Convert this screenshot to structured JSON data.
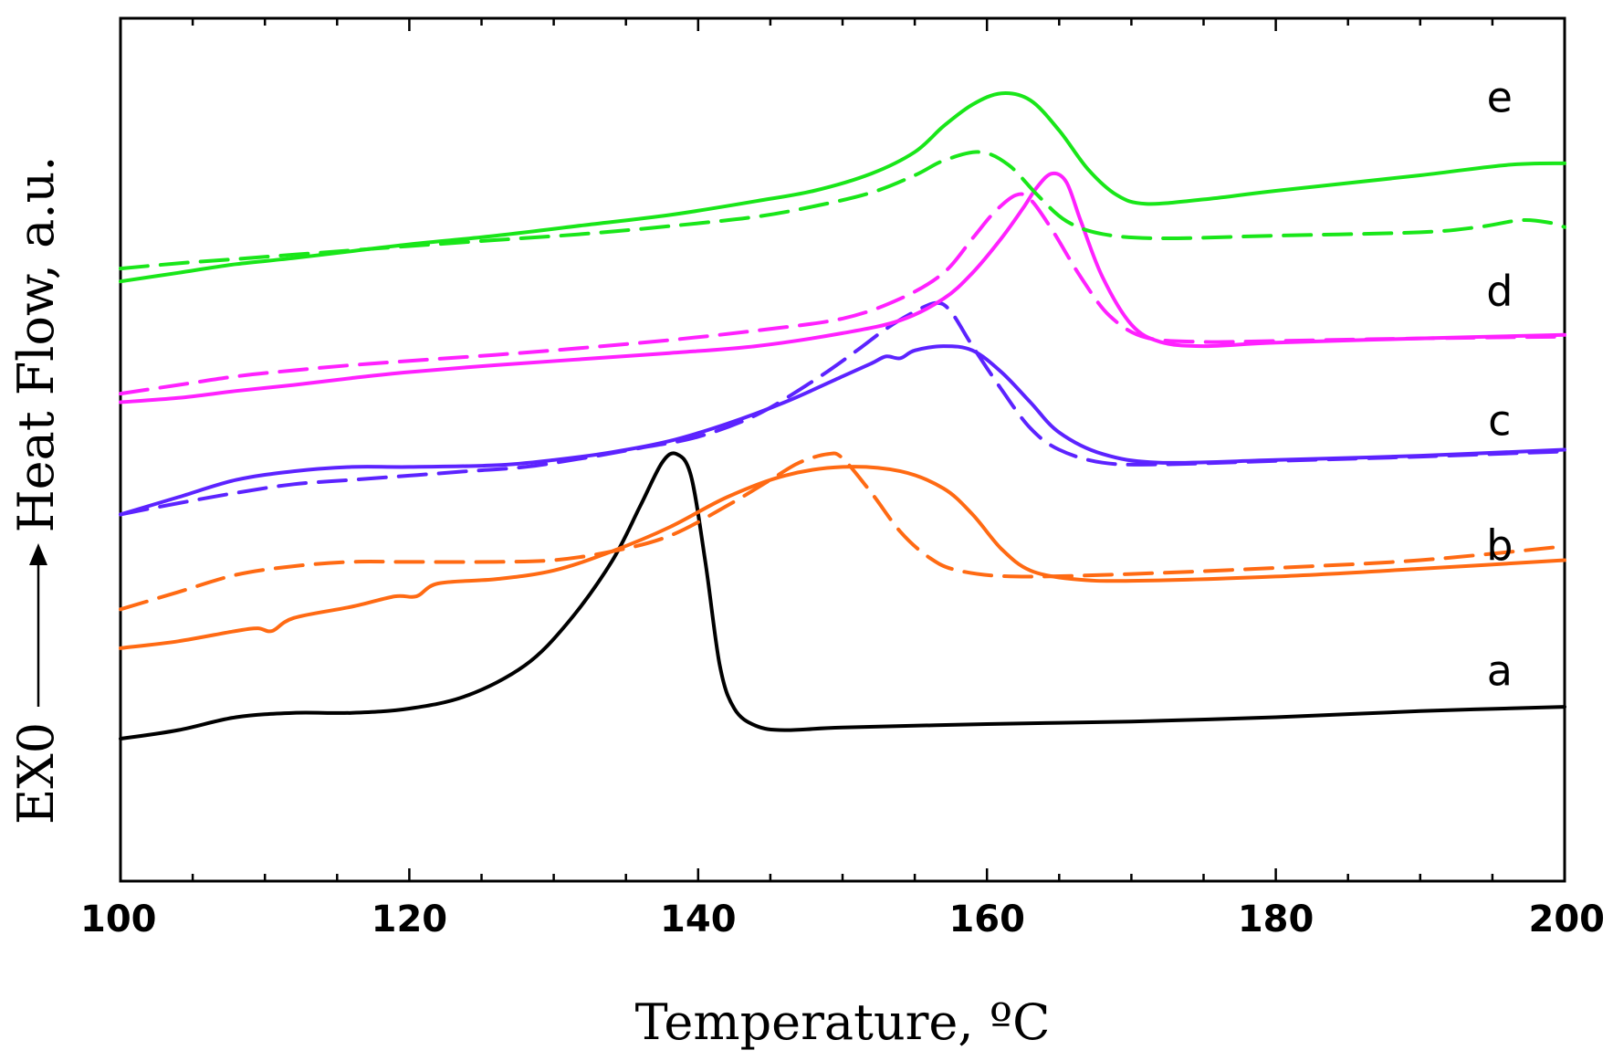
{
  "chart_data": {
    "type": "line",
    "title": "",
    "xlabel": "Temperature, ºC",
    "ylabel": "Heat Flow, a.u.",
    "ylabel_prefix": "EX0",
    "xlim": [
      100,
      200
    ],
    "ylim": [
      0,
      100
    ],
    "x_ticks": [
      100,
      120,
      140,
      160,
      180,
      200
    ],
    "x_tick_labels": [
      "100",
      "120",
      "140",
      "160",
      "180",
      "200"
    ],
    "y_ticks_shown": false,
    "grid": false,
    "curve_labels": [
      {
        "text": "e",
        "x": 195.5,
        "y": 90.5
      },
      {
        "text": "d",
        "x": 195.5,
        "y": 68.0
      },
      {
        "text": "c",
        "x": 195.5,
        "y": 53.0
      },
      {
        "text": "b",
        "x": 195.5,
        "y": 38.5
      },
      {
        "text": "a",
        "x": 195.5,
        "y": 24.0
      }
    ],
    "series": [
      {
        "name": "a",
        "color": "#000000",
        "dashed": false,
        "points": [
          [
            100,
            16.5
          ],
          [
            104,
            17.5
          ],
          [
            108,
            19.0
          ],
          [
            112,
            19.5
          ],
          [
            116,
            19.5
          ],
          [
            120,
            20.0
          ],
          [
            124,
            21.5
          ],
          [
            128,
            25.0
          ],
          [
            131,
            30.0
          ],
          [
            134,
            37.0
          ],
          [
            136,
            43.5
          ],
          [
            137.5,
            48.5
          ],
          [
            138.5,
            49.5
          ],
          [
            139.5,
            47.0
          ],
          [
            140.5,
            37.0
          ],
          [
            141.5,
            25.0
          ],
          [
            142.5,
            20.0
          ],
          [
            144,
            18.0
          ],
          [
            146,
            17.5
          ],
          [
            150,
            17.8
          ],
          [
            160,
            18.2
          ],
          [
            170,
            18.5
          ],
          [
            180,
            19.0
          ],
          [
            190,
            19.7
          ],
          [
            200,
            20.2
          ]
        ]
      },
      {
        "name": "b",
        "color": "#ff6a13",
        "dashed": false,
        "points": [
          [
            100,
            27.0
          ],
          [
            104,
            27.8
          ],
          [
            108,
            29.0
          ],
          [
            109.5,
            29.3
          ],
          [
            110.5,
            29.0
          ],
          [
            112,
            30.5
          ],
          [
            116,
            31.8
          ],
          [
            119,
            33.0
          ],
          [
            120.5,
            33.0
          ],
          [
            122,
            34.5
          ],
          [
            126,
            35.0
          ],
          [
            130,
            36.0
          ],
          [
            134,
            38.2
          ],
          [
            138,
            41.0
          ],
          [
            142,
            44.5
          ],
          [
            146,
            47.0
          ],
          [
            150,
            48.0
          ],
          [
            154,
            47.5
          ],
          [
            157,
            45.5
          ],
          [
            159,
            42.5
          ],
          [
            161,
            38.5
          ],
          [
            163,
            36.0
          ],
          [
            166,
            35.0
          ],
          [
            170,
            34.8
          ],
          [
            180,
            35.3
          ],
          [
            190,
            36.2
          ],
          [
            200,
            37.2
          ]
        ]
      },
      {
        "name": "b-dashed",
        "color": "#ff6a13",
        "dashed": true,
        "points": [
          [
            100,
            31.5
          ],
          [
            104,
            33.5
          ],
          [
            108,
            35.5
          ],
          [
            112,
            36.5
          ],
          [
            116,
            37.0
          ],
          [
            120,
            37.0
          ],
          [
            126,
            37.0
          ],
          [
            130,
            37.2
          ],
          [
            134,
            38.2
          ],
          [
            138,
            40.0
          ],
          [
            142,
            43.5
          ],
          [
            145,
            46.5
          ],
          [
            147,
            48.5
          ],
          [
            149,
            49.5
          ],
          [
            150,
            49.0
          ],
          [
            152,
            45.0
          ],
          [
            154,
            40.5
          ],
          [
            156,
            37.5
          ],
          [
            158,
            36.0
          ],
          [
            162,
            35.3
          ],
          [
            170,
            35.6
          ],
          [
            180,
            36.3
          ],
          [
            190,
            37.2
          ],
          [
            200,
            38.8
          ]
        ]
      },
      {
        "name": "c",
        "color": "#5c23ff",
        "dashed": false,
        "points": [
          [
            100,
            42.5
          ],
          [
            104,
            44.5
          ],
          [
            108,
            46.5
          ],
          [
            112,
            47.5
          ],
          [
            116,
            48.0
          ],
          [
            120,
            48.0
          ],
          [
            126,
            48.2
          ],
          [
            130,
            48.8
          ],
          [
            134,
            49.7
          ],
          [
            138,
            51.0
          ],
          [
            142,
            53.0
          ],
          [
            146,
            55.5
          ],
          [
            150,
            58.5
          ],
          [
            152,
            60.0
          ],
          [
            153,
            60.8
          ],
          [
            154,
            60.6
          ],
          [
            155,
            61.5
          ],
          [
            157,
            62.0
          ],
          [
            159,
            61.5
          ],
          [
            161,
            59.0
          ],
          [
            163,
            55.5
          ],
          [
            165,
            52.0
          ],
          [
            168,
            49.5
          ],
          [
            172,
            48.5
          ],
          [
            180,
            48.8
          ],
          [
            190,
            49.3
          ],
          [
            200,
            50.0
          ]
        ]
      },
      {
        "name": "c-dashed",
        "color": "#5c23ff",
        "dashed": true,
        "points": [
          [
            100,
            42.5
          ],
          [
            104,
            43.8
          ],
          [
            108,
            45.0
          ],
          [
            112,
            46.0
          ],
          [
            116,
            46.5
          ],
          [
            120,
            47.0
          ],
          [
            124,
            47.5
          ],
          [
            128,
            48.0
          ],
          [
            132,
            49.0
          ],
          [
            136,
            50.2
          ],
          [
            140,
            51.5
          ],
          [
            144,
            54.0
          ],
          [
            148,
            58.0
          ],
          [
            151,
            61.5
          ],
          [
            153,
            64.0
          ],
          [
            155,
            66.0
          ],
          [
            156.5,
            67.0
          ],
          [
            157.5,
            66.0
          ],
          [
            159,
            62.0
          ],
          [
            161,
            57.0
          ],
          [
            163,
            52.5
          ],
          [
            165,
            50.0
          ],
          [
            168,
            48.5
          ],
          [
            172,
            48.3
          ],
          [
            180,
            48.7
          ],
          [
            190,
            49.2
          ],
          [
            200,
            49.8
          ]
        ]
      },
      {
        "name": "d",
        "color": "#ff21ff",
        "dashed": false,
        "points": [
          [
            100,
            55.5
          ],
          [
            104,
            56.0
          ],
          [
            108,
            56.8
          ],
          [
            112,
            57.5
          ],
          [
            116,
            58.3
          ],
          [
            120,
            59.0
          ],
          [
            126,
            59.8
          ],
          [
            132,
            60.5
          ],
          [
            138,
            61.2
          ],
          [
            144,
            62.0
          ],
          [
            150,
            63.5
          ],
          [
            154,
            65.0
          ],
          [
            157,
            67.5
          ],
          [
            159,
            70.5
          ],
          [
            161,
            74.5
          ],
          [
            162.5,
            78.0
          ],
          [
            163.5,
            80.5
          ],
          [
            164.5,
            82.0
          ],
          [
            165.5,
            81.0
          ],
          [
            166.5,
            76.5
          ],
          [
            168,
            70.0
          ],
          [
            170,
            64.5
          ],
          [
            172,
            62.5
          ],
          [
            175,
            62.0
          ],
          [
            180,
            62.4
          ],
          [
            190,
            62.9
          ],
          [
            200,
            63.3
          ]
        ]
      },
      {
        "name": "d-dashed",
        "color": "#ff21ff",
        "dashed": true,
        "points": [
          [
            100,
            56.5
          ],
          [
            104,
            57.5
          ],
          [
            108,
            58.5
          ],
          [
            112,
            59.2
          ],
          [
            116,
            59.8
          ],
          [
            120,
            60.3
          ],
          [
            126,
            61.0
          ],
          [
            132,
            61.8
          ],
          [
            138,
            62.7
          ],
          [
            144,
            63.8
          ],
          [
            150,
            65.2
          ],
          [
            154,
            67.5
          ],
          [
            157,
            70.5
          ],
          [
            159,
            74.5
          ],
          [
            160.5,
            77.5
          ],
          [
            162,
            79.5
          ],
          [
            163,
            79.0
          ],
          [
            164.5,
            75.5
          ],
          [
            166.5,
            70.0
          ],
          [
            168.5,
            65.5
          ],
          [
            171,
            63.0
          ],
          [
            175,
            62.5
          ],
          [
            180,
            62.6
          ],
          [
            190,
            62.9
          ],
          [
            200,
            63.1
          ]
        ]
      },
      {
        "name": "e",
        "color": "#19e619",
        "dashed": false,
        "points": [
          [
            100,
            69.5
          ],
          [
            104,
            70.5
          ],
          [
            108,
            71.5
          ],
          [
            112,
            72.2
          ],
          [
            116,
            73.0
          ],
          [
            120,
            73.8
          ],
          [
            126,
            74.8
          ],
          [
            132,
            76.0
          ],
          [
            138,
            77.2
          ],
          [
            144,
            78.8
          ],
          [
            148,
            80.0
          ],
          [
            152,
            82.0
          ],
          [
            155,
            84.5
          ],
          [
            157,
            87.5
          ],
          [
            159,
            90.0
          ],
          [
            161,
            91.3
          ],
          [
            163,
            90.5
          ],
          [
            165,
            87.0
          ],
          [
            167,
            82.5
          ],
          [
            169,
            79.5
          ],
          [
            171,
            78.5
          ],
          [
            175,
            79.0
          ],
          [
            180,
            80.0
          ],
          [
            190,
            81.8
          ],
          [
            196,
            83.0
          ],
          [
            200,
            83.2
          ]
        ]
      },
      {
        "name": "e-dashed",
        "color": "#19e619",
        "dashed": true,
        "points": [
          [
            100,
            71.0
          ],
          [
            104,
            71.6
          ],
          [
            108,
            72.1
          ],
          [
            112,
            72.6
          ],
          [
            116,
            73.1
          ],
          [
            120,
            73.6
          ],
          [
            126,
            74.3
          ],
          [
            132,
            75.0
          ],
          [
            138,
            75.9
          ],
          [
            144,
            77.0
          ],
          [
            148,
            78.2
          ],
          [
            152,
            79.8
          ],
          [
            155,
            81.8
          ],
          [
            157,
            83.5
          ],
          [
            159.5,
            84.5
          ],
          [
            161.5,
            83.0
          ],
          [
            163.5,
            79.5
          ],
          [
            165.5,
            76.5
          ],
          [
            168,
            75.0
          ],
          [
            172,
            74.5
          ],
          [
            180,
            74.8
          ],
          [
            190,
            75.2
          ],
          [
            194,
            75.8
          ],
          [
            197,
            76.6
          ],
          [
            199,
            76.3
          ],
          [
            200,
            75.8
          ]
        ]
      }
    ]
  }
}
